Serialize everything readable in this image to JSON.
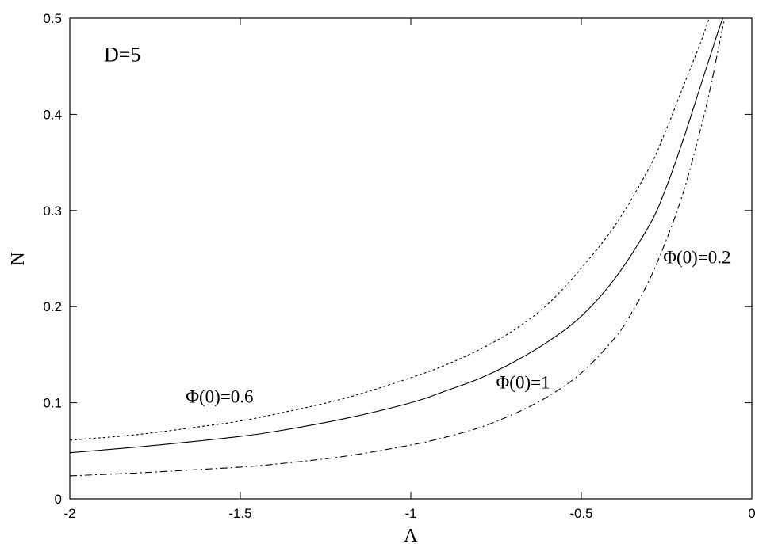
{
  "chart_data": {
    "type": "line",
    "title": "",
    "xlabel": "Λ",
    "ylabel": "N",
    "xlim": [
      -2,
      0
    ],
    "ylim": [
      0,
      0.5
    ],
    "xticks": [
      -2,
      -1.5,
      -1,
      -0.5,
      0
    ],
    "xtick_labels": [
      "-2",
      "-1.5",
      "-1",
      "-0.5",
      "0"
    ],
    "yticks": [
      0,
      0.1,
      0.2,
      0.3,
      0.4,
      0.5
    ],
    "ytick_labels": [
      "0",
      "0.1",
      "0.2",
      "0.3",
      "0.4",
      "0.5"
    ],
    "grid": false,
    "annotations": [
      {
        "text": "D=5",
        "x": -1.9,
        "y": 0.455
      },
      {
        "text": "Φ(0)=0.6",
        "x": -1.66,
        "y": 0.1
      },
      {
        "text": "Φ(0)=1",
        "x": -0.75,
        "y": 0.115
      },
      {
        "text": "Φ(0)=0.2",
        "x": -0.26,
        "y": 0.245
      }
    ],
    "series": [
      {
        "label": "Φ(0)=0.6",
        "style": "dotted",
        "x": [
          -2,
          -1.8,
          -1.6,
          -1.5,
          -1.4,
          -1.2,
          -1.0,
          -0.9,
          -0.8,
          -0.7,
          -0.6,
          -0.5,
          -0.4,
          -0.3,
          -0.25,
          -0.2,
          -0.15,
          -0.125
        ],
        "y": [
          0.061,
          0.067,
          0.076,
          0.081,
          0.088,
          0.104,
          0.126,
          0.139,
          0.155,
          0.175,
          0.202,
          0.24,
          0.285,
          0.345,
          0.385,
          0.43,
          0.475,
          0.5
        ]
      },
      {
        "label": "Φ(0)=1",
        "style": "solid",
        "x": [
          -2,
          -1.8,
          -1.6,
          -1.5,
          -1.4,
          -1.2,
          -1.0,
          -0.9,
          -0.8,
          -0.7,
          -0.6,
          -0.5,
          -0.4,
          -0.3,
          -0.25,
          -0.2,
          -0.15,
          -0.1,
          -0.085
        ],
        "y": [
          0.048,
          0.054,
          0.061,
          0.065,
          0.07,
          0.083,
          0.1,
          0.112,
          0.125,
          0.142,
          0.163,
          0.19,
          0.23,
          0.285,
          0.325,
          0.375,
          0.43,
          0.485,
          0.5
        ]
      },
      {
        "label": "Φ(0)=0.2",
        "style": "dashdot",
        "x": [
          -2,
          -1.8,
          -1.6,
          -1.5,
          -1.4,
          -1.2,
          -1.0,
          -0.9,
          -0.8,
          -0.7,
          -0.6,
          -0.5,
          -0.4,
          -0.35,
          -0.3,
          -0.25,
          -0.2,
          -0.15,
          -0.12,
          -0.1,
          -0.08
        ],
        "y": [
          0.024,
          0.027,
          0.031,
          0.033,
          0.036,
          0.044,
          0.056,
          0.064,
          0.074,
          0.088,
          0.106,
          0.131,
          0.168,
          0.195,
          0.228,
          0.27,
          0.32,
          0.385,
          0.43,
          0.465,
          0.5
        ]
      }
    ]
  }
}
